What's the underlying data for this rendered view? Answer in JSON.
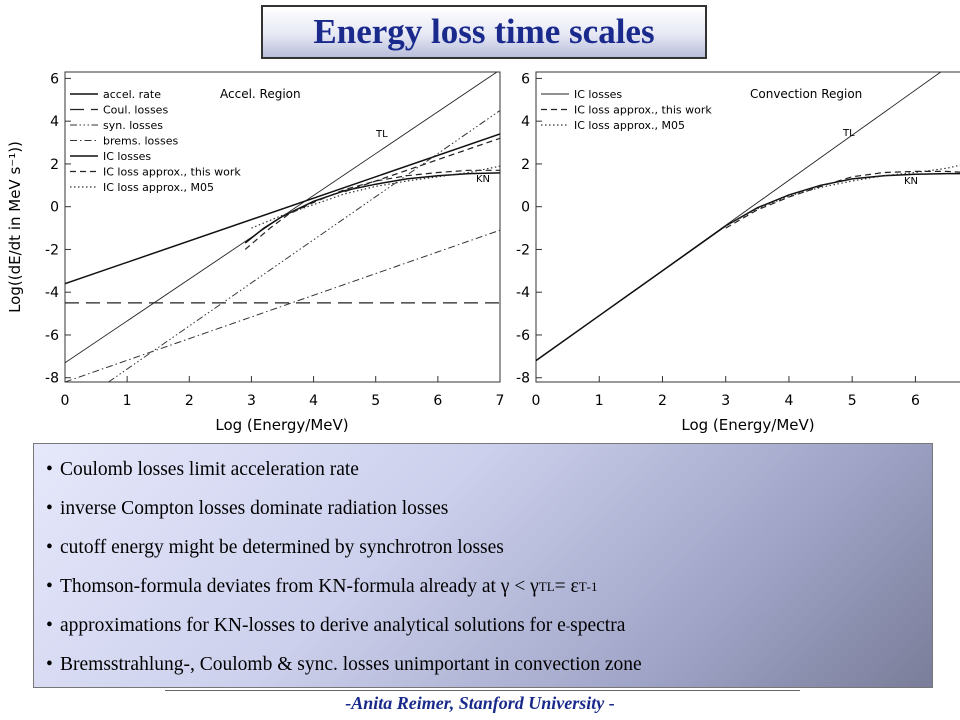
{
  "title": "Energy loss time scales",
  "chart_data": [
    {
      "type": "line",
      "region_label": "Accel. Region",
      "xlabel": "Log (Energy/MeV)",
      "ylabel": "Log((dE/dt in MeV s⁻¹))",
      "xlim": [
        0,
        7
      ],
      "ylim": [
        -8.2,
        6.3
      ],
      "xticks": [
        "0",
        "1",
        "2",
        "3",
        "4",
        "5",
        "6",
        "7"
      ],
      "yticks": [
        "-8",
        "-6",
        "-4",
        "-2",
        "0",
        "2",
        "4",
        "6"
      ],
      "legend": [
        "accel. rate",
        "Coul. losses",
        "syn. losses",
        "brems. losses",
        "IC losses",
        "IC loss approx., this work",
        "IC loss approx., M05"
      ],
      "annotations": [
        "TL",
        "KN"
      ],
      "series": [
        {
          "style": "thin",
          "x": [
            0,
            6.95
          ],
          "y": [
            -7.3,
            6.3
          ]
        },
        {
          "style": "solid",
          "x": [
            0,
            7
          ],
          "y": [
            -3.6,
            3.4
          ]
        },
        {
          "style": "longdash",
          "x": [
            0,
            7
          ],
          "y": [
            -4.5,
            -4.5
          ]
        },
        {
          "style": "dashdot3",
          "x": [
            0.7,
            7
          ],
          "y": [
            -8.2,
            4.5
          ]
        },
        {
          "style": "dashdot",
          "x": [
            0,
            7
          ],
          "y": [
            -8.2,
            -1.1
          ]
        },
        {
          "style": "solid",
          "x": [
            2.9,
            3.2,
            3.5,
            4.0,
            4.5,
            5.0,
            5.5,
            6.0,
            6.5,
            7.0
          ],
          "y": [
            -1.7,
            -1.0,
            -0.45,
            0.25,
            0.75,
            1.05,
            1.3,
            1.45,
            1.55,
            1.58
          ]
        },
        {
          "style": "dash",
          "x": [
            2.9,
            3.3,
            3.6,
            4.0,
            4.5,
            5.0,
            5.5,
            6.0,
            6.5,
            7.0
          ],
          "y": [
            -2.0,
            -1.0,
            -0.35,
            0.2,
            0.8,
            1.2,
            1.45,
            1.6,
            1.7,
            1.7
          ]
        },
        {
          "style": "dot",
          "x": [
            3.0,
            3.5,
            4.0,
            4.5,
            5.0,
            5.5,
            6.0,
            6.5,
            7.0
          ],
          "y": [
            -1.0,
            -0.4,
            0.1,
            0.6,
            0.95,
            1.2,
            1.4,
            1.6,
            1.9
          ]
        },
        {
          "style": "dash",
          "x": [
            4.5,
            7
          ],
          "y": [
            0.7,
            3.2
          ]
        }
      ]
    },
    {
      "type": "line",
      "region_label": "Convection Region",
      "xlabel": "Log (Energy/MeV)",
      "ylabel": "",
      "xlim": [
        0,
        6.8
      ],
      "ylim": [
        -8.2,
        6.3
      ],
      "xticks": [
        "0",
        "1",
        "2",
        "3",
        "4",
        "5",
        "6"
      ],
      "yticks": [
        "-8",
        "-6",
        "-4",
        "-2",
        "0",
        "2",
        "4",
        "6"
      ],
      "legend": [
        "IC losses",
        "IC loss approx., this work",
        "IC loss approx., M05"
      ],
      "annotations": [
        "TL",
        "KN"
      ],
      "series": [
        {
          "style": "thin",
          "x": [
            0,
            6.4
          ],
          "y": [
            -7.2,
            6.3
          ]
        },
        {
          "style": "solid",
          "x": [
            0,
            1,
            2,
            3,
            3.5,
            4.0,
            4.5,
            5.0,
            5.5,
            6.0,
            6.5,
            6.8
          ],
          "y": [
            -7.2,
            -5.1,
            -3.0,
            -0.9,
            -0.05,
            0.55,
            1.0,
            1.3,
            1.45,
            1.52,
            1.55,
            1.55
          ]
        },
        {
          "style": "dash",
          "x": [
            3.0,
            3.5,
            4.0,
            4.5,
            5.0,
            5.5,
            6.0,
            6.5,
            6.8
          ],
          "y": [
            -1.0,
            -0.15,
            0.45,
            0.95,
            1.4,
            1.6,
            1.65,
            1.65,
            1.6
          ]
        },
        {
          "style": "dot",
          "x": [
            3.0,
            3.5,
            4.0,
            4.5,
            5.0,
            5.5,
            6.0,
            6.5,
            6.8
          ],
          "y": [
            -0.9,
            -0.1,
            0.5,
            0.9,
            1.2,
            1.45,
            1.6,
            1.8,
            2.0
          ]
        }
      ]
    }
  ],
  "bullets": [
    {
      "dot": "•",
      "parts": [
        "Coulomb losses limit acceleration rate"
      ]
    },
    {
      "dot": "•",
      "parts": [
        "inverse Compton losses dominate radiation losses"
      ]
    },
    {
      "dot": "•",
      "parts": [
        "cutoff energy might be determined by synchrotron losses"
      ]
    },
    {
      "dot": "•",
      "parts": [
        "Thomson-formula deviates from KN-formula already at γ < γ",
        "TL",
        " = ε",
        "T",
        "-1"
      ]
    },
    {
      "dot": "•",
      "parts": [
        "approximations for KN-losses to derive analytical solutions for e",
        "-",
        " spectra"
      ]
    },
    {
      "dot": "•",
      "parts": [
        "Bremsstrahlung-, Coulomb & sync. losses unimportant in convection zone"
      ]
    }
  ],
  "footer": "-Anita Reimer, Stanford University -"
}
